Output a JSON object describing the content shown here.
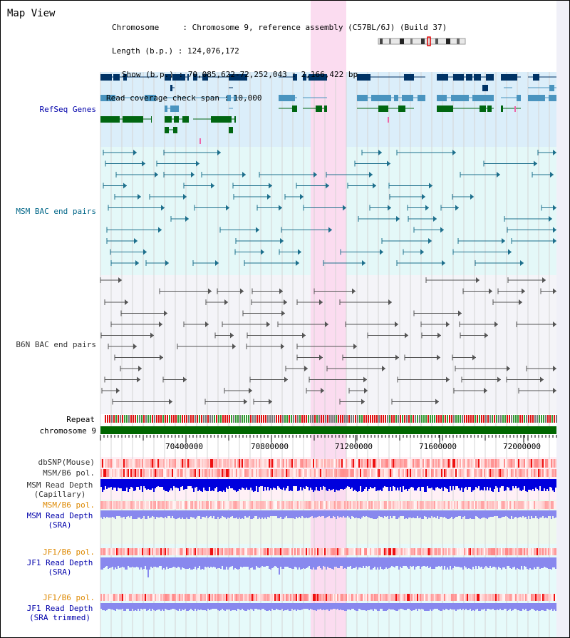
{
  "title": "Map View",
  "info": {
    "chromosome": "Chromosome     : Chromosome 9, reference assembly (C57BL/6J) (Build 37)",
    "length": "Length (b.p.) : 124,076,172",
    "show": "Show (b.p.) : 70,085,622-72,252,043 : 2,166,422 bp",
    "coverage": "Read coverage check span : 10,000"
  },
  "tracks": {
    "refseq": "RefSeq Genes",
    "msm_bac": "MSM BAC end pairs",
    "b6n_bac": "B6N BAC end pairs",
    "repeat": "Repeat",
    "chromosome": "chromosome 9",
    "dbsnp": "dbSNP(Mouse)",
    "msm_pol": "MSM/B6 pol.",
    "msm_depth_cap_1": "MSM Read Depth",
    "msm_depth_cap_2": "(Capillary)",
    "msm_pol2": "MSM/B6 pol.",
    "msm_depth_sra_1": "MSM Read Depth",
    "msm_depth_sra_2": "(SRA)",
    "jf1_pol": "JF1/B6 pol.",
    "jf1_depth_sra_1": "JF1 Read Depth",
    "jf1_depth_sra_2": "(SRA)",
    "jf1_pol2": "JF1/B6 pol.",
    "jf1_depth_trim_1": "JF1 Read Depth",
    "jf1_depth_trim_2": "(SRA trimmed)"
  },
  "axis": {
    "ticks": [
      "70400000",
      "70800000",
      "71200000",
      "71600000",
      "72000000"
    ]
  },
  "colors": {
    "refseq_bg": "#dbeefa",
    "msm_bg": "#e4f8f8",
    "b6n_bg": "#f4f4f8",
    "highlight": "#fbdcf0",
    "gene_dark": "#003366",
    "gene_mid": "#4a94bf",
    "gene_green": "#006611",
    "msm_line": "#1d6f8c",
    "b6n_line": "#555555",
    "chrom": "#006600",
    "depth_capillary": "#0000dd",
    "depth_sra": "#8888ee",
    "label_blue": "#0000aa",
    "label_teal": "#006688",
    "label_orange": "#dd8800"
  }
}
